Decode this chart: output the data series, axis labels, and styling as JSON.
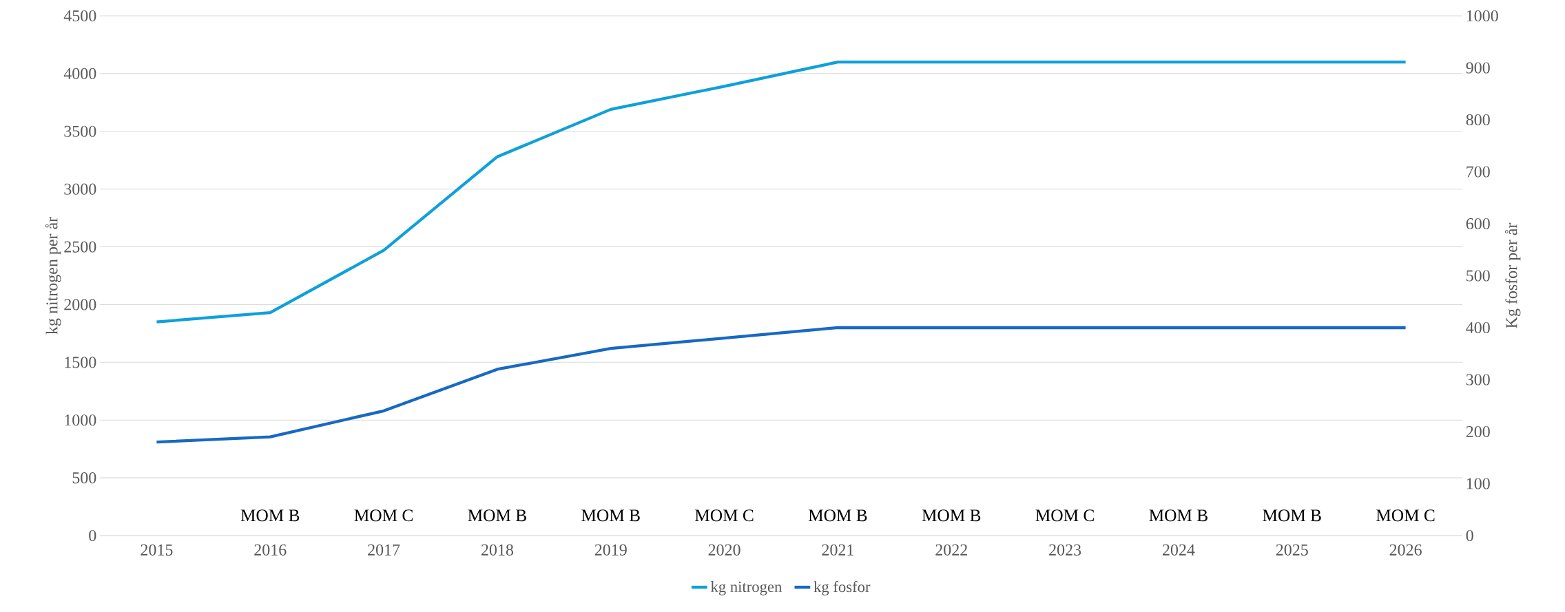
{
  "chart_data": {
    "type": "line",
    "categories": [
      "2015",
      "2016",
      "2017",
      "2018",
      "2019",
      "2020",
      "2021",
      "2022",
      "2023",
      "2024",
      "2025",
      "2026"
    ],
    "series": [
      {
        "name": "kg nitrogen",
        "color": "#0fa0da",
        "values": [
          1850,
          1930,
          2470,
          3280,
          3690,
          3890,
          4100,
          4100,
          4100,
          4100,
          4100,
          4100
        ]
      },
      {
        "name": "kg fosfor",
        "color": "#1769c2",
        "axis": "y2",
        "values": [
          180,
          190,
          240,
          320,
          360,
          380,
          400,
          400,
          400,
          400,
          400,
          400
        ]
      }
    ],
    "ylabel": "kg nitrogen per år",
    "y2label": "Kg fosfor per år",
    "ylim": [
      0,
      4500
    ],
    "yticks": [
      0,
      500,
      1000,
      1500,
      2000,
      2500,
      3000,
      3500,
      4000,
      4500
    ],
    "y2lim": [
      0,
      1000
    ],
    "y2ticks": [
      0,
      100,
      200,
      300,
      400,
      500,
      600,
      700,
      800,
      900,
      1000
    ],
    "grid": "y",
    "legend": "bottom",
    "marker": "none",
    "line_style": "solid",
    "annotations": [
      "MOM B",
      "MOM C",
      "MOM B",
      "MOM B",
      "MOM C",
      "MOM B",
      "MOM B",
      "MOM C",
      "MOM B",
      "MOM B",
      "MOM C"
    ]
  }
}
